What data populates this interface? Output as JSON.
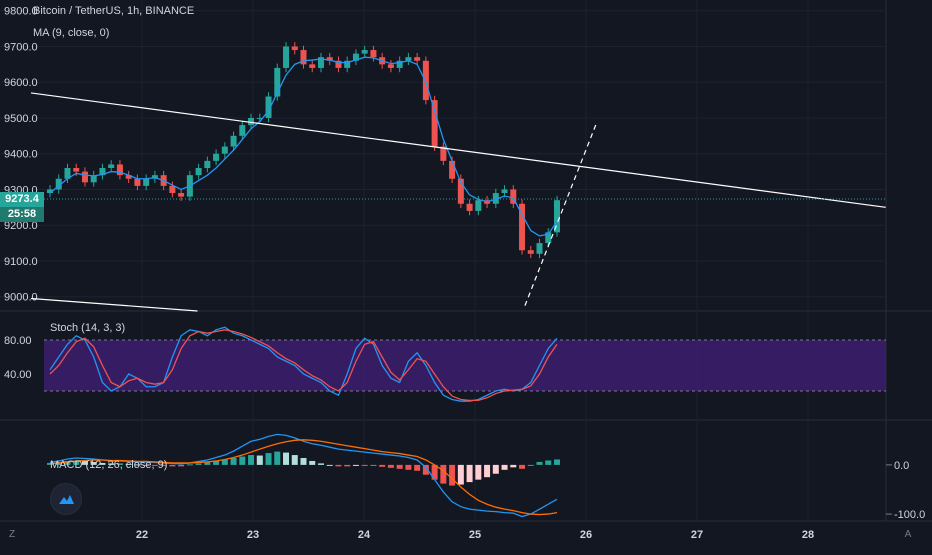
{
  "header": {
    "symbol": "Bitcoin / TetherUS, 1h, BINANCE",
    "ma_label": "MA (9, close, 0)",
    "stoch_label": "Stoch (14, 3, 3)",
    "macd_label": "MACD (12, 26, close, 9)"
  },
  "price_tag": "9273.4",
  "countdown_tag": "25:58",
  "corner_left": "Z",
  "corner_right": "A",
  "colors": {
    "background": "#131722",
    "up": "#26a69a",
    "down": "#ef5350",
    "ma": "#2196f3",
    "stoch_band": "#3d1f6e",
    "trendline": "#ffffff"
  },
  "chart_data": [
    {
      "type": "candlestick",
      "title": "Bitcoin / TetherUS, 1h, BINANCE",
      "x_ticks": [
        "22",
        "23",
        "24",
        "25",
        "26",
        "27",
        "28"
      ],
      "y_ticks": [
        "9800.0",
        "9700.0",
        "9600.0",
        "9500.0",
        "9400.0",
        "9300.0",
        "9200.0",
        "9100.0",
        "9000.0"
      ],
      "ylim": [
        8960,
        9830
      ],
      "last_price": 9273.4,
      "close_series": [
        9300,
        9330,
        9360,
        9350,
        9320,
        9340,
        9360,
        9370,
        9340,
        9330,
        9310,
        9330,
        9340,
        9310,
        9290,
        9280,
        9340,
        9360,
        9380,
        9400,
        9420,
        9450,
        9480,
        9500,
        9500,
        9560,
        9640,
        9700,
        9690,
        9650,
        9640,
        9670,
        9660,
        9640,
        9660,
        9680,
        9690,
        9670,
        9650,
        9640,
        9660,
        9670,
        9660,
        9550,
        9420,
        9380,
        9330,
        9260,
        9240,
        9270,
        9260,
        9290,
        9300,
        9260,
        9130,
        9120,
        9150,
        9180,
        9270
      ],
      "ma_series": {
        "name": "MA (9, close, 0)",
        "values": [
          9290,
          9310,
          9330,
          9345,
          9340,
          9338,
          9342,
          9350,
          9348,
          9340,
          9330,
          9330,
          9333,
          9325,
          9312,
          9300,
          9310,
          9325,
          9340,
          9360,
          9385,
          9410,
          9440,
          9470,
          9490,
          9520,
          9570,
          9620,
          9650,
          9660,
          9662,
          9665,
          9662,
          9655,
          9655,
          9662,
          9670,
          9668,
          9660,
          9652,
          9655,
          9660,
          9650,
          9600,
          9520,
          9440,
          9380,
          9320,
          9285,
          9272,
          9266,
          9272,
          9282,
          9276,
          9230,
          9185,
          9170,
          9175,
          9210
        ]
      },
      "trendlines": [
        {
          "from": [
            "21",
            9570
          ],
          "to": [
            "28.7",
            9250
          ]
        },
        {
          "from": [
            "21",
            8995
          ],
          "to": [
            "22.5",
            8960
          ]
        },
        {
          "from": [
            "25.45",
            8975
          ],
          "to": [
            "26.1",
            9490
          ]
        }
      ]
    },
    {
      "type": "line",
      "title": "Stoch (14, 3, 3)",
      "y_ticks": [
        "80.00",
        "40.00"
      ],
      "ylim": [
        0,
        100
      ],
      "band": [
        20,
        80
      ],
      "series": [
        {
          "name": "%K",
          "values": [
            45,
            60,
            75,
            85,
            80,
            60,
            30,
            20,
            25,
            40,
            35,
            25,
            25,
            30,
            60,
            85,
            92,
            90,
            85,
            92,
            95,
            88,
            85,
            80,
            75,
            70,
            60,
            55,
            50,
            40,
            35,
            30,
            20,
            15,
            40,
            70,
            82,
            75,
            50,
            35,
            30,
            55,
            65,
            50,
            30,
            15,
            10,
            8,
            8,
            10,
            15,
            20,
            22,
            20,
            22,
            30,
            50,
            70,
            82
          ]
        },
        {
          "name": "%D",
          "values": [
            40,
            50,
            65,
            78,
            82,
            72,
            50,
            30,
            25,
            32,
            35,
            30,
            28,
            30,
            45,
            70,
            85,
            90,
            88,
            90,
            92,
            90,
            87,
            83,
            78,
            73,
            65,
            58,
            53,
            45,
            38,
            33,
            25,
            20,
            30,
            55,
            75,
            78,
            60,
            42,
            33,
            45,
            58,
            55,
            40,
            25,
            14,
            10,
            9,
            9,
            12,
            17,
            20,
            21,
            22,
            26,
            40,
            60,
            75
          ]
        }
      ]
    },
    {
      "type": "bar",
      "title": "MACD (12, 26, close, 9)",
      "y_ticks": [
        "0.0",
        "-100.0"
      ],
      "ylim": [
        -110,
        75
      ],
      "histogram": [
        4,
        6,
        8,
        9,
        8,
        6,
        4,
        3,
        3,
        2,
        1,
        -1,
        -2,
        -2,
        -3,
        -3,
        1,
        3,
        5,
        8,
        11,
        14,
        17,
        20,
        19,
        24,
        27,
        25,
        20,
        14,
        8,
        3,
        0,
        -3,
        -3,
        -2,
        -2,
        -2,
        -4,
        -6,
        -8,
        -10,
        -12,
        -20,
        -30,
        -38,
        -42,
        -40,
        -35,
        -30,
        -25,
        -18,
        -10,
        -5,
        -8,
        0,
        6,
        9,
        11
      ],
      "series": [
        {
          "name": "MACD",
          "values": [
            5,
            8,
            12,
            14,
            13,
            12,
            10,
            8,
            8,
            7,
            6,
            6,
            5,
            4,
            3,
            2,
            4,
            7,
            10,
            15,
            20,
            28,
            38,
            48,
            52,
            58,
            62,
            60,
            55,
            48,
            43,
            40,
            36,
            32,
            30,
            28,
            26,
            24,
            22,
            20,
            18,
            15,
            10,
            -5,
            -30,
            -55,
            -75,
            -85,
            -90,
            -92,
            -94,
            -95,
            -97,
            -98,
            -105,
            -100,
            -90,
            -80,
            -70
          ]
        },
        {
          "name": "Signal",
          "values": [
            2,
            4,
            6,
            8,
            9,
            10,
            10,
            9,
            9,
            8,
            7,
            7,
            6,
            5,
            4,
            4,
            4,
            5,
            6,
            8,
            11,
            15,
            20,
            26,
            32,
            38,
            43,
            47,
            50,
            51,
            50,
            48,
            45,
            42,
            39,
            36,
            33,
            30,
            27,
            25,
            23,
            20,
            17,
            10,
            0,
            -12,
            -28,
            -45,
            -60,
            -72,
            -80,
            -86,
            -90,
            -93,
            -97,
            -100,
            -101,
            -100,
            -97
          ]
        }
      ]
    }
  ]
}
